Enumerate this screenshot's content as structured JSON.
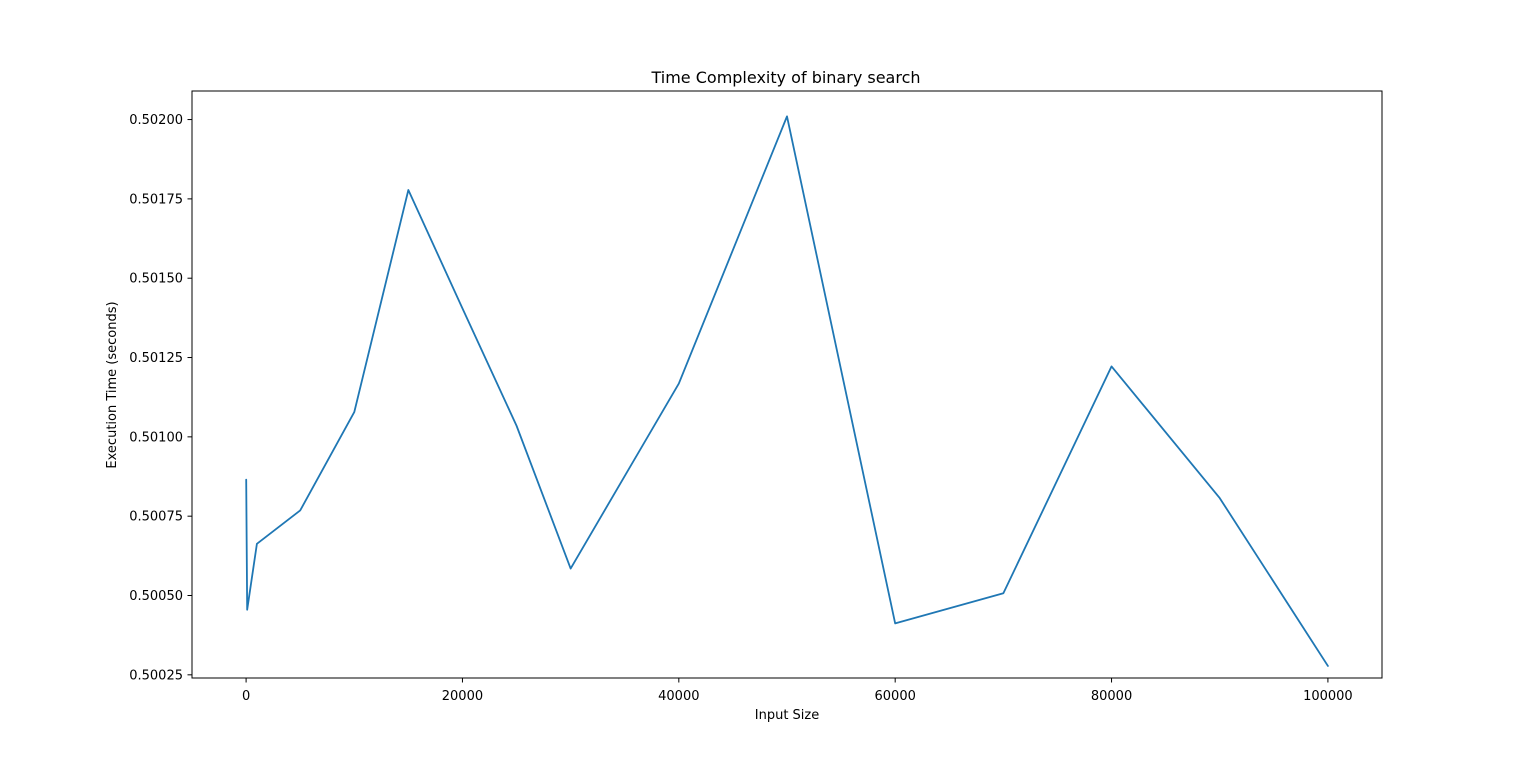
{
  "chart_data": {
    "type": "line",
    "title": "Time Complexity of binary search",
    "xlabel": "Input Size",
    "ylabel": "Execution Time (seconds)",
    "xlim": [
      -5000,
      105000
    ],
    "ylim": [
      0.50024,
      0.50209
    ],
    "xticks": [
      0,
      20000,
      40000,
      60000,
      80000,
      100000
    ],
    "yticks": [
      0.50025,
      0.5005,
      0.50075,
      0.501,
      0.50125,
      0.5015,
      0.50175,
      0.502
    ],
    "ytick_labels": [
      "0.50025",
      "0.50050",
      "0.50075",
      "0.50100",
      "0.50125",
      "0.50150",
      "0.50175",
      "0.50200"
    ],
    "grid": false,
    "series": [
      {
        "color": "#1f77b4",
        "x": [
          10,
          100,
          1000,
          5000,
          10000,
          15000,
          20000,
          25000,
          30000,
          40000,
          50000,
          60000,
          70000,
          80000,
          90000,
          100000
        ],
        "y": [
          0.500865,
          0.500455,
          0.500663,
          0.500768,
          0.501078,
          0.501778,
          0.501405,
          0.501035,
          0.500585,
          0.501168,
          0.50201,
          0.500412,
          0.500507,
          0.501222,
          0.500807,
          0.500278
        ]
      }
    ]
  }
}
